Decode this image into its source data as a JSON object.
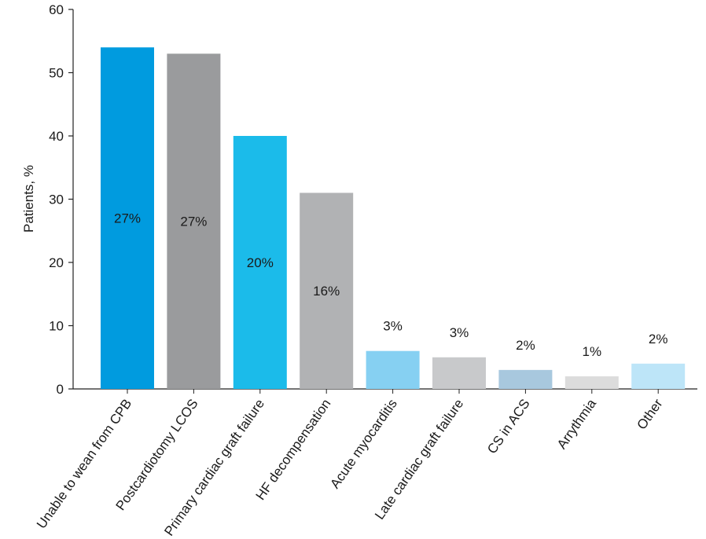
{
  "chart_data": {
    "type": "bar",
    "ylabel": "Patients, %",
    "ylim": [
      0,
      60
    ],
    "yticks": [
      0,
      10,
      20,
      30,
      40,
      50,
      60
    ],
    "grid": false,
    "categories": [
      "Unable to wean from CPB",
      "Postcardiotomy LCOS",
      "Primary cardiac graft failure",
      "HF decompensation",
      "Acute myocarditis",
      "Late cardiac graft failure",
      "CS in ACS",
      "Arrythmia",
      "Other"
    ],
    "values": [
      54,
      53,
      40,
      31,
      6,
      5,
      3,
      2,
      4
    ],
    "data_labels": [
      "27%",
      "27%",
      "20%",
      "16%",
      "3%",
      "3%",
      "2%",
      "1%",
      "2%"
    ],
    "colors": [
      "#009bdf",
      "#9a9b9d",
      "#1bbbea",
      "#b1b2b4",
      "#86d0f2",
      "#c8c9cb",
      "#a8c8de",
      "#dcdcdc",
      "#bde5f8"
    ]
  }
}
